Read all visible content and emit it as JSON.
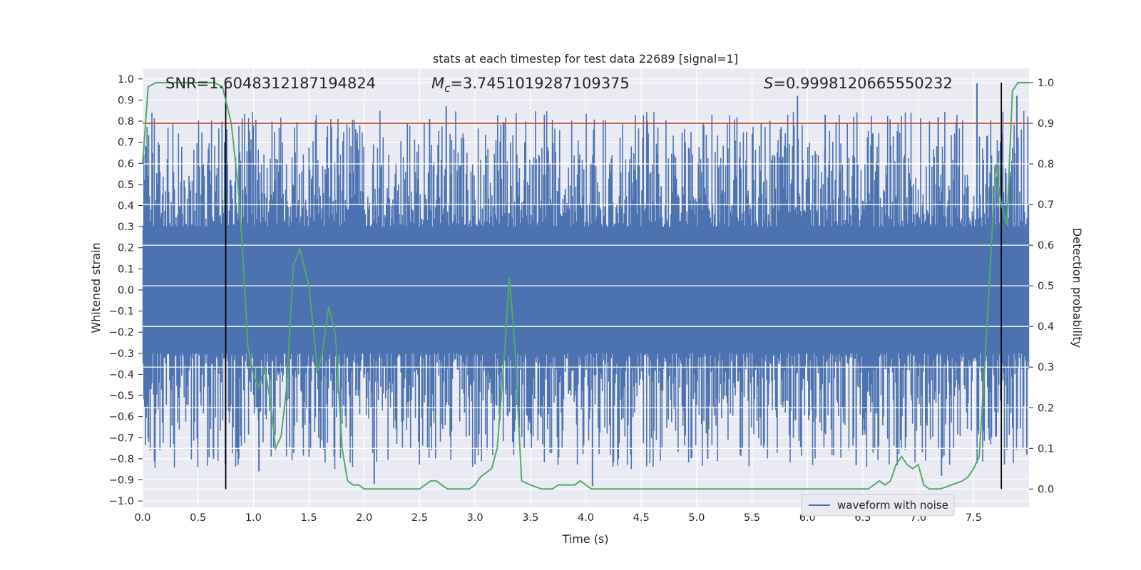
{
  "chart_data": {
    "type": "line",
    "title": "stats at each timestep for test data 22689 [signal=1]",
    "xlabel": "Time (s)",
    "ylabel": "Whitened strain",
    "y2label": "Detection probability",
    "xlim": [
      0.0,
      8.0
    ],
    "ylim": [
      -1.03,
      1.05
    ],
    "y2lim": [
      -0.045,
      1.035
    ],
    "xticks": [
      "0.0",
      "0.5",
      "1.0",
      "1.5",
      "2.0",
      "2.5",
      "3.0",
      "3.5",
      "4.0",
      "4.5",
      "5.0",
      "5.5",
      "6.0",
      "6.5",
      "7.0",
      "7.5"
    ],
    "xtick_values": [
      0.0,
      0.5,
      1.0,
      1.5,
      2.0,
      2.5,
      3.0,
      3.5,
      4.0,
      4.5,
      5.0,
      5.5,
      6.0,
      6.5,
      7.0,
      7.5
    ],
    "yticks": [
      "−1.0",
      "−0.9",
      "−0.8",
      "−0.7",
      "−0.6",
      "−0.5",
      "−0.4",
      "−0.3",
      "−0.2",
      "−0.1",
      "0.0",
      "0.1",
      "0.2",
      "0.3",
      "0.4",
      "0.5",
      "0.6",
      "0.7",
      "0.8",
      "0.9",
      "1.0"
    ],
    "ytick_values": [
      -1.0,
      -0.9,
      -0.8,
      -0.7,
      -0.6,
      -0.5,
      -0.4,
      -0.3,
      -0.2,
      -0.1,
      0.0,
      0.1,
      0.2,
      0.3,
      0.4,
      0.5,
      0.6,
      0.7,
      0.8,
      0.9,
      1.0
    ],
    "y2ticks": [
      "0.0",
      "0.1",
      "0.2",
      "0.3",
      "0.4",
      "0.5",
      "0.6",
      "0.7",
      "0.8",
      "0.9",
      "1.0"
    ],
    "y2tick_values": [
      0.0,
      0.1,
      0.2,
      0.3,
      0.4,
      0.5,
      0.6,
      0.7,
      0.8,
      0.9,
      1.0
    ],
    "annotations": {
      "snr": "SNR=1.6048312187194824",
      "mc_symbol": "M",
      "mc_subscript": "c",
      "mc_value": "=3.7451019287109375",
      "s_symbol": "S",
      "s_value": "=0.9998120665550232"
    },
    "legend": {
      "label": "waveform with noise",
      "position": "lower-right"
    },
    "threshold": {
      "value": 0.9,
      "axis": "y2",
      "color": "#c0392b"
    },
    "vlines": [
      0.75,
      7.75
    ],
    "waveform": {
      "name": "waveform with noise",
      "color": "#4c72b0",
      "band": 0.3,
      "noise_amplitude": 0.55,
      "peaks": [
        {
          "x": 2.74,
          "y": 0.87
        },
        {
          "x": 5.91,
          "y": 0.92
        },
        {
          "x": 7.53,
          "y": 0.98
        },
        {
          "x": 7.89,
          "y": 0.92
        },
        {
          "x": 6.16,
          "y": 0.83
        },
        {
          "x": 7.18,
          "y": 0.82
        },
        {
          "x": 2.59,
          "y": 0.81
        },
        {
          "x": 0.74,
          "y": 0.7
        },
        {
          "x": 0.96,
          "y": 0.69
        },
        {
          "x": 3.45,
          "y": 0.7
        },
        {
          "x": 4.06,
          "y": -0.93
        },
        {
          "x": 2.09,
          "y": -0.92
        },
        {
          "x": 1.05,
          "y": -0.86
        },
        {
          "x": 0.64,
          "y": -0.8
        },
        {
          "x": 3.34,
          "y": -0.72
        },
        {
          "x": 6.44,
          "y": -0.83
        },
        {
          "x": 7.21,
          "y": -0.88
        },
        {
          "x": 5.1,
          "y": -0.8
        },
        {
          "x": 0.05,
          "y": -0.7
        },
        {
          "x": 7.98,
          "y": -0.78
        }
      ]
    },
    "detection_probability": {
      "name": "detection probability",
      "color": "#55a868",
      "x": [
        0.0,
        0.05,
        0.12,
        0.2,
        0.3,
        0.4,
        0.5,
        0.6,
        0.65,
        0.72,
        0.8,
        0.86,
        0.9,
        0.95,
        1.0,
        1.05,
        1.1,
        1.15,
        1.2,
        1.25,
        1.3,
        1.36,
        1.42,
        1.5,
        1.58,
        1.62,
        1.68,
        1.74,
        1.8,
        1.85,
        1.9,
        1.95,
        2.0,
        2.1,
        2.2,
        2.3,
        2.4,
        2.5,
        2.55,
        2.6,
        2.65,
        2.7,
        2.75,
        2.8,
        2.9,
        2.95,
        3.0,
        3.05,
        3.1,
        3.15,
        3.2,
        3.27,
        3.31,
        3.36,
        3.42,
        3.5,
        3.6,
        3.7,
        3.75,
        3.8,
        3.9,
        3.95,
        4.0,
        4.05,
        4.1,
        4.5,
        5.0,
        5.5,
        6.0,
        6.5,
        6.55,
        6.6,
        6.65,
        6.7,
        6.75,
        6.8,
        6.85,
        6.9,
        6.95,
        7.0,
        7.05,
        7.1,
        7.2,
        7.3,
        7.4,
        7.45,
        7.5,
        7.55,
        7.6,
        7.65,
        7.7,
        7.75,
        7.8,
        7.85,
        7.9,
        7.95,
        8.0
      ],
      "y": [
        0.8,
        0.99,
        1.0,
        1.0,
        1.0,
        1.0,
        1.0,
        1.0,
        1.0,
        0.99,
        0.9,
        0.75,
        0.6,
        0.35,
        0.28,
        0.25,
        0.3,
        0.22,
        0.1,
        0.13,
        0.25,
        0.55,
        0.59,
        0.5,
        0.29,
        0.33,
        0.45,
        0.38,
        0.1,
        0.02,
        0.01,
        0.01,
        0.0,
        0.0,
        0.0,
        0.0,
        0.0,
        0.0,
        0.01,
        0.02,
        0.02,
        0.01,
        0.0,
        0.0,
        0.0,
        0.0,
        0.01,
        0.03,
        0.04,
        0.05,
        0.1,
        0.35,
        0.52,
        0.35,
        0.02,
        0.01,
        0.0,
        0.0,
        0.01,
        0.01,
        0.01,
        0.02,
        0.01,
        0.0,
        0.0,
        0.0,
        0.0,
        0.0,
        0.0,
        0.0,
        0.0,
        0.01,
        0.02,
        0.01,
        0.02,
        0.06,
        0.08,
        0.06,
        0.05,
        0.06,
        0.01,
        0.0,
        0.0,
        0.01,
        0.02,
        0.03,
        0.05,
        0.08,
        0.3,
        0.55,
        0.8,
        0.7,
        0.65,
        0.98,
        1.0,
        1.0,
        1.0
      ]
    }
  }
}
